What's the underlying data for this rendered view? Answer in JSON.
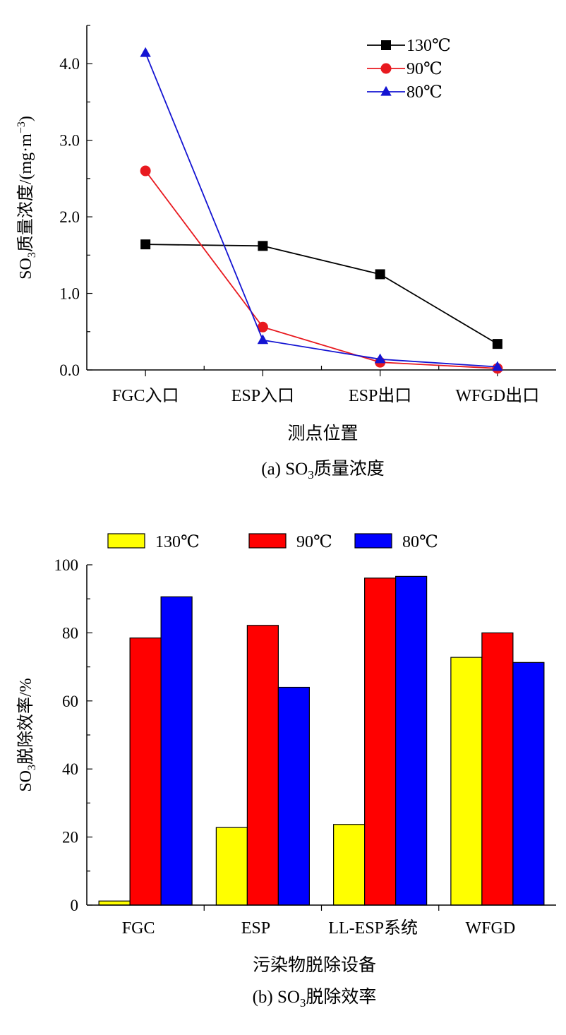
{
  "chart_data": [
    {
      "type": "line",
      "xlabel": "测点位置",
      "ylabel_main": "SO",
      "ylabel_sub": "3",
      "ylabel_rest": "质量浓度/(mg·m",
      "ylabel_sup": "−3",
      "ylabel_close": ")",
      "caption_prefix": "(a) SO",
      "caption_sub": "3",
      "caption_suffix": "质量浓度",
      "ylim": [
        0,
        4.5
      ],
      "yticks": [
        "0.0",
        "1.0",
        "2.0",
        "3.0",
        "4.0"
      ],
      "ytick_values": [
        0,
        1,
        2,
        3,
        4
      ],
      "categories": [
        "FGC入口",
        "ESP入口",
        "ESP出口",
        "WFGD出口"
      ],
      "legend_position": "top-right",
      "series": [
        {
          "name": "130℃",
          "color": "#000000",
          "marker": "square",
          "values": [
            1.64,
            1.62,
            1.25,
            0.34
          ]
        },
        {
          "name": "90℃",
          "color": "#e8191f",
          "marker": "circle",
          "values": [
            2.6,
            0.56,
            0.1,
            0.02
          ]
        },
        {
          "name": "80℃",
          "color": "#1414d2",
          "marker": "triangle",
          "values": [
            4.14,
            0.39,
            0.14,
            0.04
          ]
        }
      ]
    },
    {
      "type": "bar",
      "xlabel": "污染物脱除设备",
      "ylabel_main": "SO",
      "ylabel_sub": "3",
      "ylabel_rest": "脱除效率/%",
      "caption_prefix": "(b) SO",
      "caption_sub": "3",
      "caption_suffix": "脱除效率",
      "ylim": [
        0,
        100
      ],
      "yticks": [
        "0",
        "20",
        "40",
        "60",
        "80",
        "100"
      ],
      "ytick_values": [
        0,
        20,
        40,
        60,
        80,
        100
      ],
      "categories": [
        "FGC",
        "ESP",
        "LL-ESP系统",
        "WFGD"
      ],
      "legend_position": "top",
      "series": [
        {
          "name": "130℃",
          "color": "#ffff00",
          "values": [
            1.2,
            22.8,
            23.7,
            72.8
          ]
        },
        {
          "name": "90℃",
          "color": "#ff0000",
          "values": [
            78.5,
            82.2,
            96.1,
            80.0
          ]
        },
        {
          "name": "80℃",
          "color": "#0000ff",
          "values": [
            90.6,
            64.0,
            96.6,
            71.3
          ]
        }
      ]
    }
  ]
}
